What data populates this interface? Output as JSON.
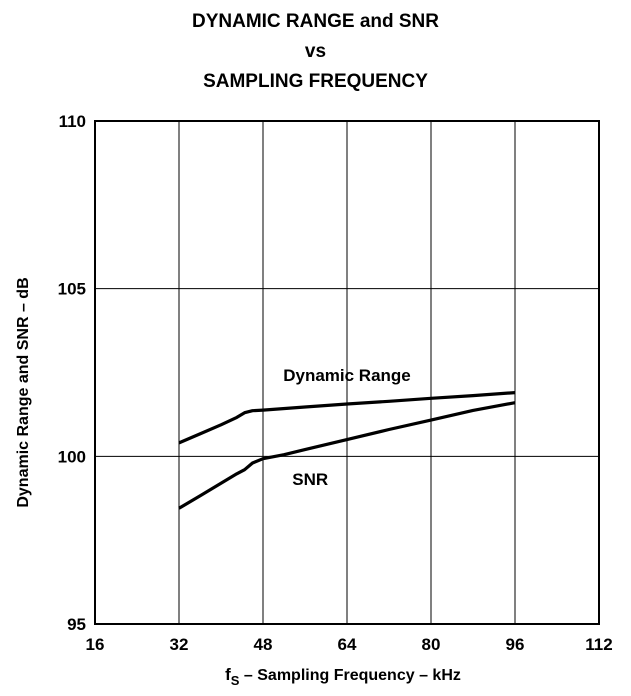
{
  "title_lines": [
    "DYNAMIC RANGE and SNR",
    "vs",
    "SAMPLING FREQUENCY"
  ],
  "chart_data": {
    "type": "line",
    "title": "DYNAMIC RANGE and SNR vs SAMPLING FREQUENCY",
    "xlabel_main": "f",
    "xlabel_sub": "S",
    "xlabel_rest": " – Sampling Frequency – kHz",
    "ylabel": "Dynamic Range and SNR – dB",
    "xlim": [
      16,
      112
    ],
    "ylim": [
      95,
      110
    ],
    "xticks": [
      16,
      32,
      48,
      64,
      80,
      96,
      112
    ],
    "yticks": [
      95,
      100,
      105,
      110
    ],
    "grid": true,
    "series": [
      {
        "name": "Dynamic Range",
        "x": [
          32,
          36,
          40,
          43,
          44.5,
          46,
          48,
          56,
          64,
          72,
          80,
          88,
          96
        ],
        "y": [
          100.4,
          100.67,
          100.94,
          101.16,
          101.3,
          101.36,
          101.38,
          101.47,
          101.56,
          101.64,
          101.73,
          101.81,
          101.9
        ]
      },
      {
        "name": "SNR",
        "x": [
          32,
          36,
          40,
          43,
          44.5,
          46,
          48,
          52,
          56,
          64,
          72,
          80,
          88,
          96
        ],
        "y": [
          98.45,
          98.82,
          99.2,
          99.48,
          99.6,
          99.8,
          99.93,
          100.05,
          100.2,
          100.5,
          100.8,
          101.08,
          101.37,
          101.6
        ]
      }
    ]
  }
}
